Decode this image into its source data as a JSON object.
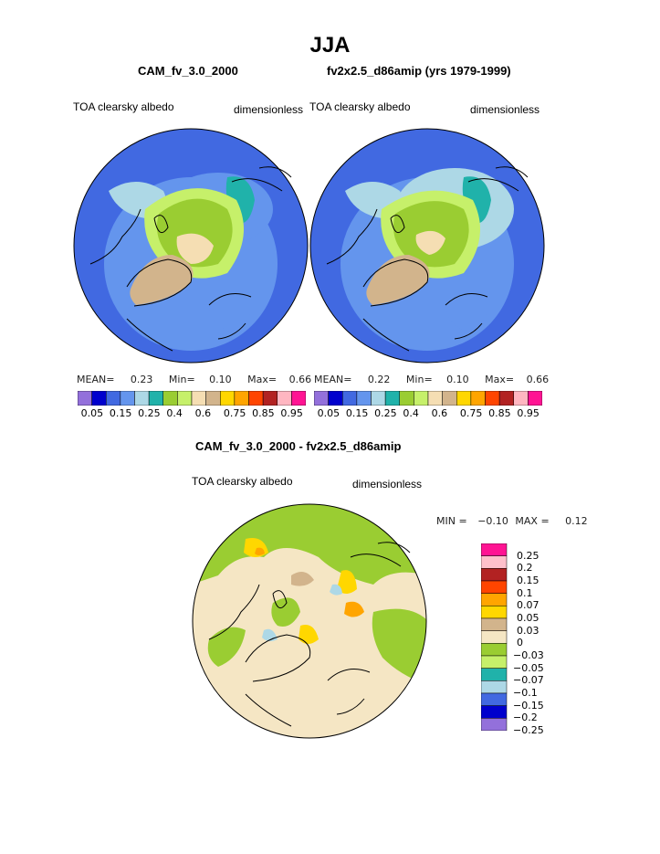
{
  "title": "JJA",
  "palette": [
    "#9370DB",
    "#0000CD",
    "#4169E1",
    "#6495ED",
    "#ADD8E6",
    "#20B2AA",
    "#9ACD32",
    "#C6F06A",
    "#F5DEB3",
    "#D2B48C",
    "#FFD700",
    "#FFA500",
    "#FF4500",
    "#B22222",
    "#FFB6C1",
    "#FF1493"
  ],
  "panels": [
    {
      "case_title": "CAM_fv_3.0_2000",
      "variable": "TOA clearsky albedo",
      "units": "dimensionless",
      "mean_label": "MEAN=",
      "mean": "0.23",
      "min_label": "Min=",
      "min": "0.10",
      "max_label": "Max=",
      "max": "0.66",
      "colorbar_labels": [
        "0.05",
        "0.15",
        "0.25",
        "0.4",
        "0.6",
        "0.75",
        "0.85",
        "0.95"
      ]
    },
    {
      "case_title": "fv2x2.5_d86amip (yrs 1979-1999)",
      "variable": "TOA clearsky albedo",
      "units": "dimensionless",
      "mean_label": "MEAN=",
      "mean": "0.22",
      "min_label": "Min=",
      "min": "0.10",
      "max_label": "Max=",
      "max": "0.66",
      "colorbar_labels": [
        "0.05",
        "0.15",
        "0.25",
        "0.4",
        "0.6",
        "0.75",
        "0.85",
        "0.95"
      ]
    }
  ],
  "diff": {
    "title": "CAM_fv_3.0_2000 - fv2x2.5_d86amip",
    "variable": "TOA clearsky albedo",
    "units": "dimensionless",
    "min_label": "MIN =",
    "min": "−0.10",
    "max_label": "MAX =",
    "max": "0.12",
    "colorbar_labels": [
      "0.25",
      "0.2",
      "0.15",
      "0.1",
      "0.07",
      "0.05",
      "0.03",
      "0",
      "−0.03",
      "−0.05",
      "−0.07",
      "−0.1",
      "−0.15",
      "−0.2",
      "−0.25"
    ],
    "colorbar_colors": [
      "#FF1493",
      "#FFC0CB",
      "#B22222",
      "#FF4500",
      "#FFA500",
      "#FFD700",
      "#D2B48C",
      "#F5E6C4",
      "#9ACD32",
      "#C6F06A",
      "#20B2AA",
      "#ADD8E6",
      "#4169E1",
      "#0000CD",
      "#9370DB"
    ]
  }
}
